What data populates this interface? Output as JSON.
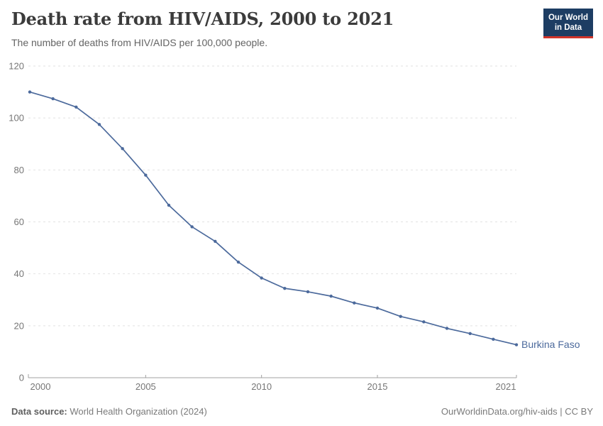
{
  "header": {
    "title": "Death rate from HIV/AIDS, 2000 to 2021",
    "subtitle": "The number of deaths from HIV/AIDS per 100,000 people.",
    "logo": {
      "line1": "Our World",
      "line2": "in Data"
    }
  },
  "chart_data": {
    "type": "line",
    "title": "Death rate from HIV/AIDS, 2000 to 2021",
    "xlabel": "",
    "ylabel": "",
    "x": [
      2000,
      2001,
      2002,
      2003,
      2004,
      2005,
      2006,
      2007,
      2008,
      2009,
      2010,
      2011,
      2012,
      2013,
      2014,
      2015,
      2016,
      2017,
      2018,
      2019,
      2020,
      2021
    ],
    "series": [
      {
        "name": "Burkina Faso",
        "color": "#4c6a9c",
        "values": [
          110.0,
          107.4,
          104.2,
          97.5,
          88.2,
          78.0,
          66.4,
          58.1,
          52.5,
          44.5,
          38.4,
          34.4,
          33.1,
          31.4,
          28.8,
          26.8,
          23.6,
          21.5,
          19.0,
          17.0,
          14.8,
          12.7
        ]
      }
    ],
    "xlim": [
      2000,
      2021
    ],
    "ylim": [
      0,
      120
    ],
    "x_ticks": [
      2000,
      2005,
      2010,
      2015,
      2021
    ],
    "y_ticks": [
      0,
      20,
      40,
      60,
      80,
      100,
      120
    ],
    "grid": "horizontal-dashed",
    "legend_position": "end-of-line-label"
  },
  "footer": {
    "source_label": "Data source:",
    "source_text": " World Health Organization (2024)",
    "credit": "OurWorldinData.org/hiv-aids | CC BY"
  },
  "colors": {
    "series": "#4c6a9c",
    "gridline": "#e2e2e2",
    "axis": "#a0a0a0",
    "tick_label": "#767676",
    "title_text": "#3b3b3b",
    "subtitle_text": "#646464",
    "logo_bg": "#1d3d63",
    "logo_accent": "#d0342a"
  }
}
